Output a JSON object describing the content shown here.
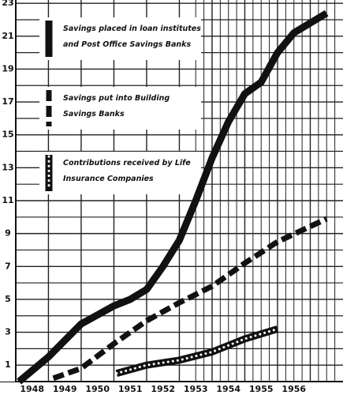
{
  "chart_data": {
    "type": "line",
    "xlim": [
      1947.52,
      1958
    ],
    "ylim": [
      0,
      23.2
    ],
    "xticks": [
      1948,
      1949,
      1950,
      1951,
      1952,
      1953,
      1954,
      1955,
      1956
    ],
    "yticks": [
      1,
      3,
      5,
      7,
      9,
      11,
      13,
      15,
      17,
      19,
      21,
      23
    ],
    "grid": true,
    "series": [
      {
        "name": "Savings placed in loan institutes and Post Office Savings Banks",
        "color": "#111111",
        "style": "solid",
        "x": [
          1948.1,
          1949,
          1950,
          1951,
          1951.5,
          1952,
          1952.5,
          1953,
          1953.5,
          1954,
          1954.5,
          1955,
          1955.5,
          1956,
          1956.5,
          1957.5
        ],
        "values": [
          0,
          1.5,
          3.5,
          4.6,
          5,
          5.6,
          7,
          8.6,
          11,
          13.6,
          15.8,
          17.5,
          18.2,
          20,
          21.2,
          22.4
        ]
      },
      {
        "name": "Savings put into Building Savings Banks",
        "color": "#111111",
        "style": "dashed",
        "x": [
          1949.15,
          1950,
          1951,
          1952,
          1953,
          1954,
          1955,
          1956,
          1957.5
        ],
        "values": [
          0.2,
          0.8,
          2.3,
          3.7,
          4.8,
          5.8,
          7.2,
          8.5,
          9.9
        ]
      },
      {
        "name": "Contributions received by Life Insurance Companies",
        "color": "#111111",
        "style": "dotted",
        "x": [
          1951.08,
          1952,
          1953,
          1954,
          1955,
          1956
        ],
        "values": [
          0.5,
          1.0,
          1.3,
          1.8,
          2.6,
          3.2
        ]
      }
    ]
  }
}
